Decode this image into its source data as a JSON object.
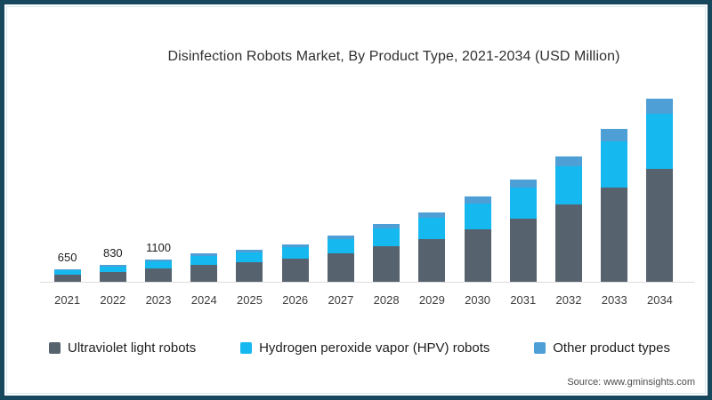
{
  "source": "Source: www.gminsights.com",
  "chart_data": {
    "type": "bar",
    "stacked": true,
    "title": "Disinfection Robots Market, By Product Type, 2021-2034 (USD Million)",
    "categories": [
      "2021",
      "2022",
      "2023",
      "2024",
      "2025",
      "2026",
      "2027",
      "2028",
      "2029",
      "2030",
      "2031",
      "2032",
      "2033",
      "2034"
    ],
    "series": [
      {
        "name": "Ultraviolet light robots",
        "color": "#57626f",
        "values": [
          405,
          515,
          680,
          855,
          1005,
          1180,
          1425,
          1765,
          2110,
          2575,
          3100,
          3780,
          4590,
          5520
        ]
      },
      {
        "name": "Hydrogen peroxide vapor (HPV) robots",
        "color": "#15b9ef",
        "values": [
          195,
          250,
          335,
          415,
          485,
          570,
          690,
          855,
          1020,
          1245,
          1500,
          1830,
          2220,
          2670
        ]
      },
      {
        "name": "Other product types",
        "color": "#4d9fd6",
        "values": [
          50,
          65,
          85,
          110,
          130,
          150,
          185,
          230,
          270,
          330,
          400,
          490,
          590,
          710
        ]
      }
    ],
    "totals": [
      650,
      830,
      1100,
      1380,
      1620,
      1900,
      2300,
      2850,
      3400,
      4150,
      5000,
      6100,
      7400,
      8900
    ],
    "data_labels": [
      "650",
      "830",
      "1100",
      "",
      "",
      "",
      "",
      "",
      "",
      "",
      "",
      "",
      "",
      ""
    ],
    "xlabel": "",
    "ylabel": "",
    "ylim": [
      0,
      8900
    ],
    "grid": false,
    "y_axis_visible": false,
    "x_axis_line": true,
    "legend_position": "bottom"
  },
  "frame": {
    "border_color": "#17485d",
    "background": "#ffffff"
  }
}
